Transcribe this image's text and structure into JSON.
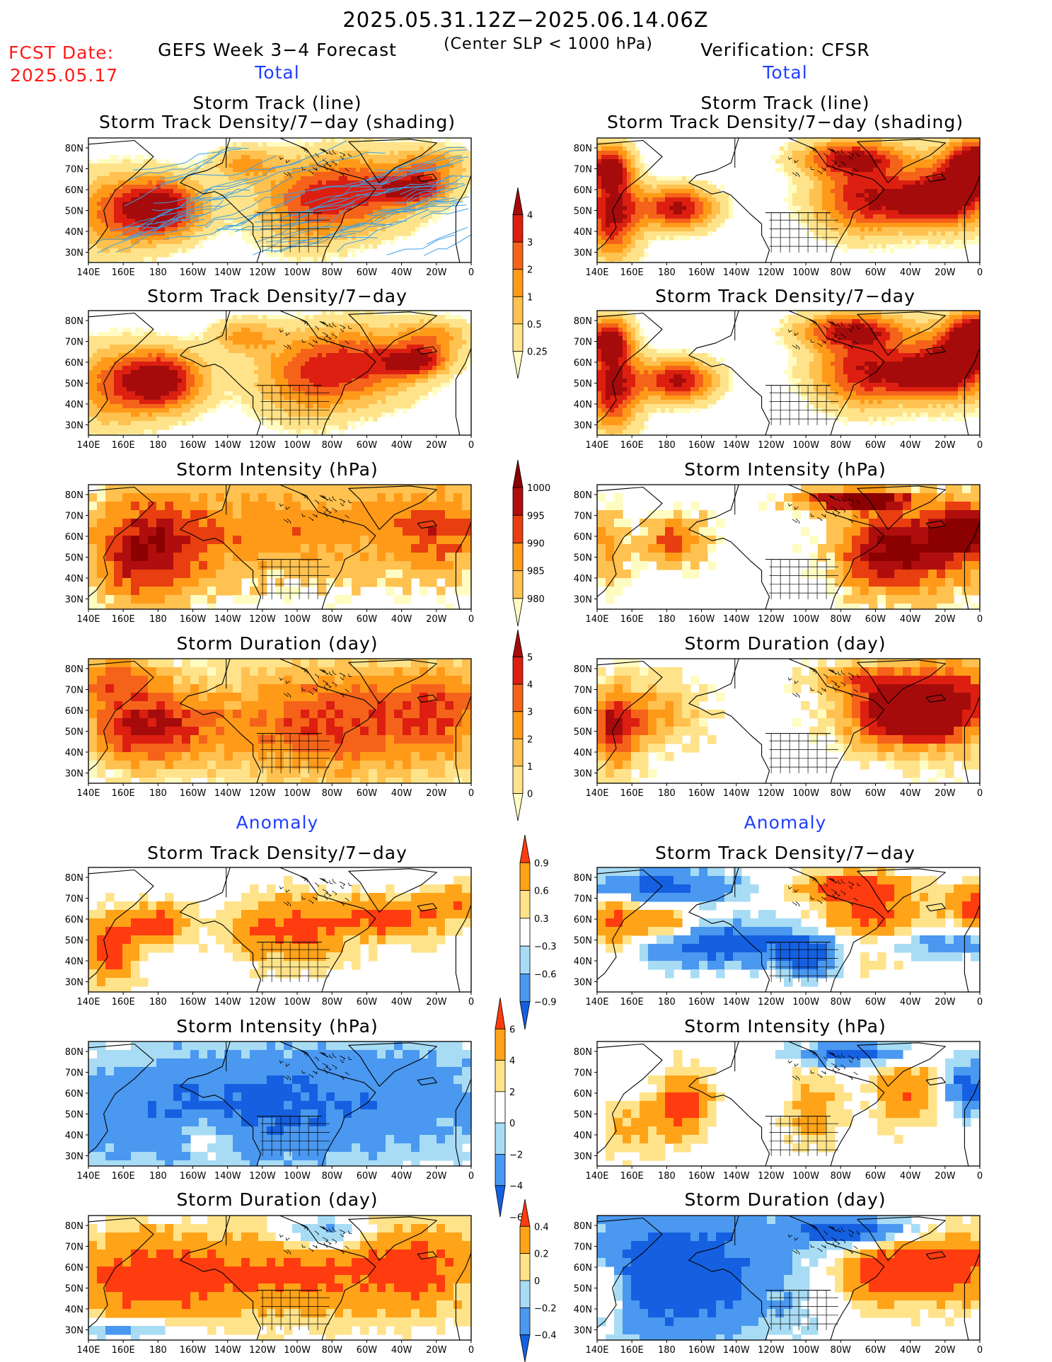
{
  "header": {
    "date_range": "2025.05.31.12Z−2025.06.14.06Z",
    "subtitle": "(Center SLP < 1000 hPa)",
    "fcst_label": "FCST Date:",
    "fcst_date": "2025.05.17",
    "left_title": "GEFS Week 3−4 Forecast",
    "right_title": "Verification: CFSR"
  },
  "sections": {
    "total": "Total",
    "anomaly": "Anomaly"
  },
  "panel_titles": {
    "track_line": "Storm Track (line)",
    "track_shading": "Storm Track Density/7−day (shading)",
    "density": "Storm Track Density/7−day",
    "intensity": "Storm Intensity (hPa)",
    "duration": "Storm Duration (day)"
  },
  "axes": {
    "lat_ticks": [
      "80N",
      "70N",
      "60N",
      "50N",
      "40N",
      "30N"
    ],
    "lon_ticks": [
      "140E",
      "160E",
      "180",
      "160W",
      "140W",
      "120W",
      "100W",
      "80W",
      "60W",
      "40W",
      "20W",
      "0"
    ]
  },
  "colors": {
    "total_density": [
      "#fffcc2",
      "#ffe38a",
      "#ffc14f",
      "#ff9a19",
      "#f5631a",
      "#dc1f10",
      "#a50b0b"
    ],
    "total_intensity": [
      "#fffcc2",
      "#ffc14f",
      "#ff9a19",
      "#e83e10",
      "#b00e0e",
      "#8b0000"
    ],
    "total_duration": [
      "#fffcc2",
      "#ffe38a",
      "#ffc14f",
      "#ff9a19",
      "#f5631a",
      "#dc1f10",
      "#a50b0b"
    ],
    "anomaly": [
      "#1560e0",
      "#4a98f0",
      "#a8dcf5",
      "#ffffff",
      "#ffe38a",
      "#ffa318",
      "#ff3c10"
    ],
    "track_line": "#3aa0e8"
  },
  "chart_data": [
    {
      "type": "heatmap",
      "colorbar": "total_density",
      "levels": [
        0.25,
        0.5,
        1,
        2,
        3,
        4
      ],
      "region": {
        "lon_range": [
          "140E",
          "0"
        ],
        "lat_range": [
          "25N",
          "85N"
        ]
      }
    },
    {
      "type": "heatmap",
      "colorbar": "total_intensity",
      "levels": [
        1000,
        995,
        990,
        985,
        980
      ]
    },
    {
      "type": "heatmap",
      "colorbar": "total_duration",
      "levels": [
        0,
        1,
        2,
        3,
        4,
        5
      ]
    },
    {
      "type": "heatmap",
      "colorbar": "anomaly_density",
      "levels": [
        0.9,
        0.6,
        0.3,
        -0.3,
        -0.6,
        -0.9
      ]
    },
    {
      "type": "heatmap",
      "colorbar": "anomaly_intensity",
      "levels": [
        6,
        4,
        2,
        0,
        -2,
        -4,
        -6
      ]
    },
    {
      "type": "heatmap",
      "colorbar": "anomaly_duration",
      "levels": [
        0.4,
        0.2,
        0,
        -0.2,
        -0.4
      ]
    }
  ],
  "colorbar_labels": {
    "density": [
      "4",
      "3",
      "2",
      "1",
      "0.5",
      "0.25"
    ],
    "intensity": [
      "1000",
      "995",
      "990",
      "985",
      "980"
    ],
    "duration": [
      "5",
      "4",
      "3",
      "2",
      "1",
      "0"
    ],
    "anom_density": [
      "0.9",
      "0.6",
      "0.3",
      "−0.3",
      "−0.6",
      "−0.9"
    ],
    "anom_intensity": [
      "6",
      "4",
      "2",
      "0",
      "−2",
      "−4",
      "−6"
    ],
    "anom_duration": [
      "0.4",
      "0.2",
      "0",
      "−0.2",
      "−0.4"
    ]
  }
}
